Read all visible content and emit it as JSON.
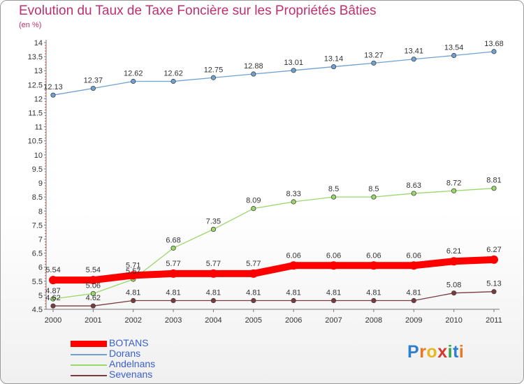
{
  "chart_data": {
    "type": "line",
    "title": "Evolution du Taux de Taxe Foncière sur les Propriétés Bâties",
    "subtitle": "(en %)",
    "xlabel": "",
    "ylabel": "",
    "categories": [
      "2000",
      "2001",
      "2002",
      "2003",
      "2004",
      "2005",
      "2006",
      "2007",
      "2008",
      "2009",
      "2010",
      "2011"
    ],
    "ylim": [
      4.5,
      14
    ],
    "yticks": [
      "4.5",
      "5",
      "5.5",
      "6",
      "6.5",
      "7",
      "7.5",
      "8",
      "8.5",
      "9",
      "9.5",
      "10",
      "10.5",
      "11",
      "11.5",
      "12",
      "12.5",
      "13",
      "13.5",
      "14"
    ],
    "grid": false,
    "legend_position": "bottom-left",
    "series": [
      {
        "name": "BOTANS",
        "color": "#ff0000",
        "values": [
          5.54,
          5.54,
          5.71,
          5.77,
          5.77,
          5.77,
          6.06,
          6.06,
          6.06,
          6.06,
          6.21,
          6.27
        ],
        "labels": [
          "5.54",
          "5.54",
          "5.71",
          "5.77",
          "5.77",
          "5.77",
          "6.06",
          "6.06",
          "6.06",
          "6.06",
          "6.21",
          "6.27"
        ]
      },
      {
        "name": "Dorans",
        "color": "#6fa1d2",
        "values": [
          12.13,
          12.37,
          12.62,
          12.62,
          12.75,
          12.88,
          13.01,
          13.14,
          13.27,
          13.41,
          13.54,
          13.68
        ],
        "labels": [
          "12.13",
          "12.37",
          "12.62",
          "12.62",
          "12.75",
          "12.88",
          "13.01",
          "13.14",
          "13.27",
          "13.41",
          "13.54",
          "13.68"
        ]
      },
      {
        "name": "Andelnans",
        "color": "#99d86a",
        "values": [
          4.87,
          5.06,
          5.57,
          6.68,
          7.35,
          8.09,
          8.33,
          8.5,
          8.5,
          8.63,
          8.72,
          8.81
        ],
        "labels": [
          "4.87",
          "5.06",
          "5.57",
          "6.68",
          "7.35",
          "8.09",
          "8.33",
          "8.5",
          "8.5",
          "8.63",
          "8.72",
          "8.81"
        ]
      },
      {
        "name": "Sevenans",
        "color": "#7a3a3e",
        "values": [
          4.62,
          4.62,
          4.81,
          4.81,
          4.81,
          4.81,
          4.81,
          4.81,
          4.81,
          4.81,
          5.08,
          5.13
        ],
        "labels": [
          "4.62",
          "4.62",
          "4.81",
          "4.81",
          "4.81",
          "4.81",
          "4.81",
          "4.81",
          "4.81",
          "4.81",
          "5.08",
          "5.13"
        ]
      }
    ]
  },
  "logo": {
    "text": "Proxiti",
    "colors": [
      "#2f7fd1",
      "#e87722",
      "#e8b81f",
      "#d33a2c",
      "#3aa04b",
      "#2f7fd1",
      "#e87722"
    ]
  }
}
